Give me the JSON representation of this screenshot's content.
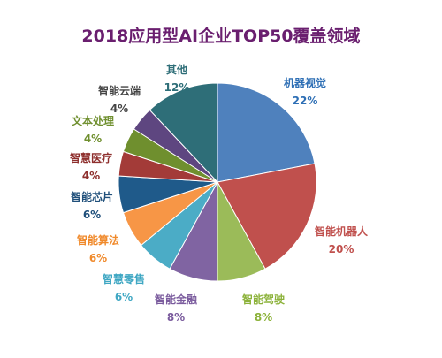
{
  "chart_data": {
    "type": "pie",
    "title": "2018应用型AI企业TOP50覆盖领域",
    "slices": [
      {
        "label": "机器视觉",
        "value": 22,
        "value_label": "22%",
        "color": "#4f81bd",
        "label_color": "#2e6fb5"
      },
      {
        "label": "智能机器人",
        "value": 20,
        "value_label": "20%",
        "color": "#c0504d",
        "label_color": "#c0504d"
      },
      {
        "label": "智能驾驶",
        "value": 8,
        "value_label": "8%",
        "color": "#9bbb59",
        "label_color": "#8cb23a"
      },
      {
        "label": "智能金融",
        "value": 8,
        "value_label": "8%",
        "color": "#8064a2",
        "label_color": "#7b5c9e"
      },
      {
        "label": "智慧零售",
        "value": 6,
        "value_label": "6%",
        "color": "#4bacc6",
        "label_color": "#3fa7c3"
      },
      {
        "label": "智能算法",
        "value": 6,
        "value_label": "6%",
        "color": "#f79646",
        "label_color": "#f08a2c"
      },
      {
        "label": "智能芯片",
        "value": 6,
        "value_label": "6%",
        "color": "#1f5a8a",
        "label_color": "#1f4f7a"
      },
      {
        "label": "智慧医疗",
        "value": 4,
        "value_label": "4%",
        "color": "#a33b38",
        "label_color": "#8e2f2d"
      },
      {
        "label": "文本处理",
        "value": 4,
        "value_label": "4%",
        "color": "#6f8f2e",
        "label_color": "#6f8f2e"
      },
      {
        "label": "智能云端",
        "value": 4,
        "value_label": "4%",
        "color": "#5e4680",
        "label_color": "#444444"
      },
      {
        "label": "其他",
        "value": 12,
        "value_label": "12%",
        "color": "#2e6e78",
        "label_color": "#2e6e78"
      }
    ]
  }
}
